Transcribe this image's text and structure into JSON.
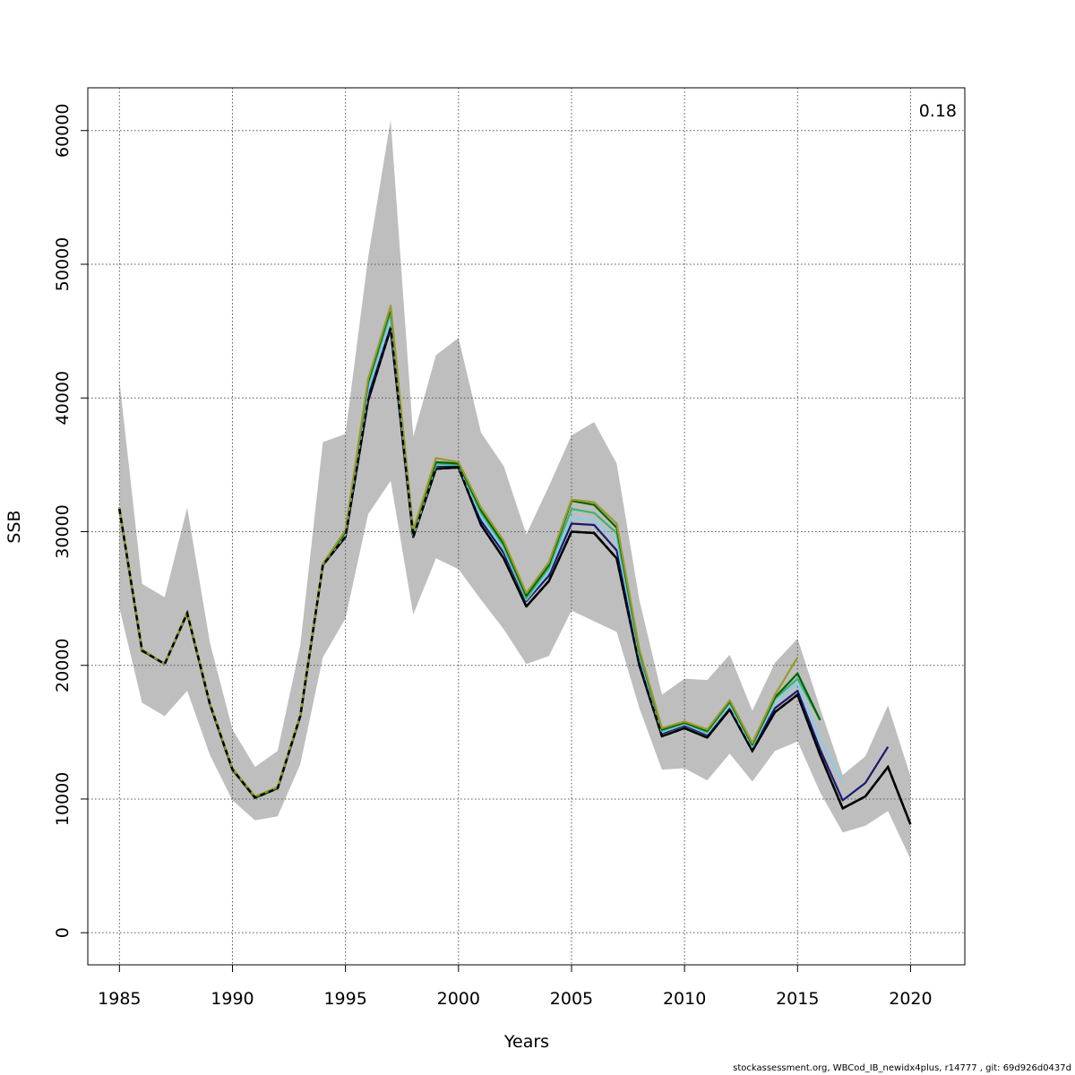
{
  "chart_data": {
    "type": "line",
    "title": "",
    "xlabel": "Years",
    "ylabel": "SSB",
    "xlim": [
      1983.6,
      2022.4
    ],
    "ylim": [
      -2400,
      63200
    ],
    "x_ticks": [
      1985,
      1990,
      1995,
      2000,
      2005,
      2010,
      2015,
      2020
    ],
    "y_ticks": [
      0,
      10000,
      20000,
      30000,
      40000,
      50000,
      60000
    ],
    "x_tick_labels": [
      "1985",
      "1990",
      "1995",
      "2000",
      "2005",
      "2010",
      "2015",
      "2020"
    ],
    "y_tick_labels": [
      "0",
      "10000",
      "20000",
      "30000",
      "40000",
      "50000",
      "60000"
    ],
    "grid": true,
    "annotation": "0.18",
    "footer": "stockassessment.org, WBCod_IB_newidx4plus, r14777 , git: 69d926d0437d",
    "colors": {
      "band": "#bebebe",
      "grid": "#555555"
    },
    "confidence_band": {
      "x": [
        1985,
        1986,
        1987,
        1988,
        1989,
        1990,
        1991,
        1992,
        1993,
        1994,
        1995,
        1996,
        1997,
        1998,
        1999,
        2000,
        2001,
        2002,
        2003,
        2004,
        2005,
        2006,
        2007,
        2008,
        2009,
        2010,
        2011,
        2012,
        2013,
        2014,
        2015,
        2016,
        2017,
        2018,
        2019,
        2020
      ],
      "lower": [
        24300,
        17200,
        16200,
        18100,
        13300,
        9900,
        8400,
        8700,
        12600,
        20600,
        23500,
        31300,
        33800,
        23800,
        28000,
        27200,
        24900,
        22700,
        20100,
        20700,
        24100,
        23300,
        22500,
        16800,
        12200,
        12300,
        11400,
        13400,
        11300,
        13600,
        14300,
        10500,
        7500,
        8000,
        9100,
        5500
      ],
      "upper": [
        41300,
        26100,
        25100,
        31800,
        21700,
        15200,
        12400,
        13600,
        21500,
        36700,
        37300,
        50500,
        60800,
        37100,
        43200,
        44500,
        37400,
        34900,
        29800,
        33400,
        37200,
        38200,
        35100,
        24900,
        17800,
        19000,
        18900,
        20800,
        16600,
        20200,
        22000,
        16800,
        11800,
        13200,
        17000,
        11700
      ]
    },
    "series": [
      {
        "color": "#000000",
        "dashed": true,
        "width": 2.5,
        "x": [
          1985,
          1986,
          1987,
          1988,
          1989,
          1990,
          1991,
          1992,
          1993,
          1994,
          1995,
          1996,
          1997,
          1998,
          1999,
          2000,
          2001,
          2002,
          2003,
          2004,
          2005,
          2006,
          2007,
          2008,
          2009,
          2010,
          2011,
          2012,
          2013,
          2014,
          2015,
          2016,
          2017,
          2018,
          2019,
          2020
        ],
        "y": [
          31700,
          21100,
          20100,
          23900,
          17100,
          12200,
          10100,
          10800,
          16200,
          27500,
          29600,
          39800,
          45200,
          29600,
          34700,
          34800,
          30500,
          28000,
          24400,
          26300,
          30000,
          29900,
          28000,
          20000,
          14700,
          15300,
          14600,
          16700,
          13600,
          16500,
          17800,
          13300,
          9300,
          10200,
          12400,
          8100
        ]
      },
      {
        "color": "#191970",
        "dashed": false,
        "width": 2.2,
        "x": [
          1985,
          1986,
          1987,
          1988,
          1989,
          1990,
          1991,
          1992,
          1993,
          1994,
          1995,
          1996,
          1997,
          1998,
          1999,
          2000,
          2001,
          2002,
          2003,
          2004,
          2005,
          2006,
          2007,
          2008,
          2009,
          2010,
          2011,
          2012,
          2013,
          2014,
          2015,
          2016,
          2017,
          2018,
          2019
        ],
        "y": [
          31700,
          21100,
          20100,
          23900,
          17100,
          12200,
          10100,
          10800,
          16200,
          27500,
          29700,
          40100,
          45300,
          29700,
          34900,
          34900,
          30800,
          28400,
          24800,
          26700,
          30600,
          30500,
          28600,
          20300,
          14900,
          15500,
          14800,
          16900,
          13800,
          16800,
          18100,
          13700,
          9900,
          11200,
          13900
        ]
      },
      {
        "color": "#87ceeb",
        "dashed": false,
        "width": 2.2,
        "x": [
          1985,
          1986,
          1987,
          1988,
          1989,
          1990,
          1991,
          1992,
          1993,
          1994,
          1995,
          1996,
          1997,
          1998,
          1999,
          2000,
          2001,
          2002,
          2003,
          2004,
          2005,
          2006,
          2007,
          2008,
          2009,
          2010,
          2011,
          2012,
          2013,
          2014,
          2015,
          2016,
          2017
        ],
        "y": [
          31700,
          21100,
          20100,
          23900,
          17100,
          12200,
          10100,
          10800,
          16200,
          27500,
          29800,
          40600,
          46000,
          29700,
          35000,
          35000,
          31100,
          28700,
          24900,
          27000,
          31100,
          30800,
          29300,
          20700,
          15000,
          15600,
          14900,
          17000,
          13900,
          17200,
          18700,
          14400,
          11300
        ]
      },
      {
        "color": "#3cb371",
        "dashed": false,
        "width": 2.2,
        "x": [
          1985,
          1986,
          1987,
          1988,
          1989,
          1990,
          1991,
          1992,
          1993,
          1994,
          1995,
          1996,
          1997,
          1998,
          1999,
          2000,
          2001,
          2002,
          2003,
          2004,
          2005,
          2006,
          2007,
          2008,
          2009,
          2010,
          2011,
          2012,
          2013,
          2014,
          2015,
          2016
        ],
        "y": [
          31700,
          21100,
          20100,
          23900,
          17100,
          12200,
          10100,
          10800,
          16200,
          27500,
          29900,
          41000,
          46400,
          29900,
          35100,
          35000,
          31400,
          28900,
          25000,
          27300,
          31700,
          31400,
          29900,
          20900,
          15100,
          15700,
          15000,
          17200,
          14000,
          17500,
          19000,
          15900
        ]
      },
      {
        "color": "#006400",
        "dashed": false,
        "width": 2.2,
        "x": [
          1985,
          1986,
          1987,
          1988,
          1989,
          1990,
          1991,
          1992,
          1993,
          1994,
          1995,
          1996,
          1997,
          1998,
          1999,
          2000,
          2001,
          2002,
          2003,
          2004,
          2005,
          2006,
          2007,
          2008,
          2009,
          2010,
          2011,
          2012,
          2013,
          2014,
          2015,
          2016
        ],
        "y": [
          31800,
          21100,
          20100,
          23900,
          17100,
          12200,
          10100,
          10800,
          16200,
          27500,
          30000,
          41200,
          46700,
          30000,
          35200,
          35100,
          31600,
          29100,
          25200,
          27500,
          32300,
          32000,
          30300,
          21100,
          15200,
          15700,
          15100,
          17300,
          14100,
          17600,
          19400,
          15900
        ]
      },
      {
        "color": "#9a9a2a",
        "dashed": false,
        "width": 2.2,
        "x": [
          1985,
          1986,
          1987,
          1988,
          1989,
          1990,
          1991,
          1992,
          1993,
          1994,
          1995,
          1996,
          1997,
          1998,
          1999,
          2000,
          2001,
          2002,
          2003,
          2004,
          2005,
          2006,
          2007,
          2008,
          2009,
          2010,
          2011,
          2012,
          2013,
          2014,
          2015
        ],
        "y": [
          31800,
          21200,
          20100,
          24000,
          17200,
          12300,
          10200,
          10900,
          16300,
          27600,
          30100,
          41400,
          46900,
          30100,
          35500,
          35200,
          31800,
          29300,
          25400,
          27700,
          32400,
          32200,
          30600,
          21200,
          15300,
          15800,
          15200,
          17400,
          14200,
          17800,
          20600
        ]
      }
    ]
  }
}
